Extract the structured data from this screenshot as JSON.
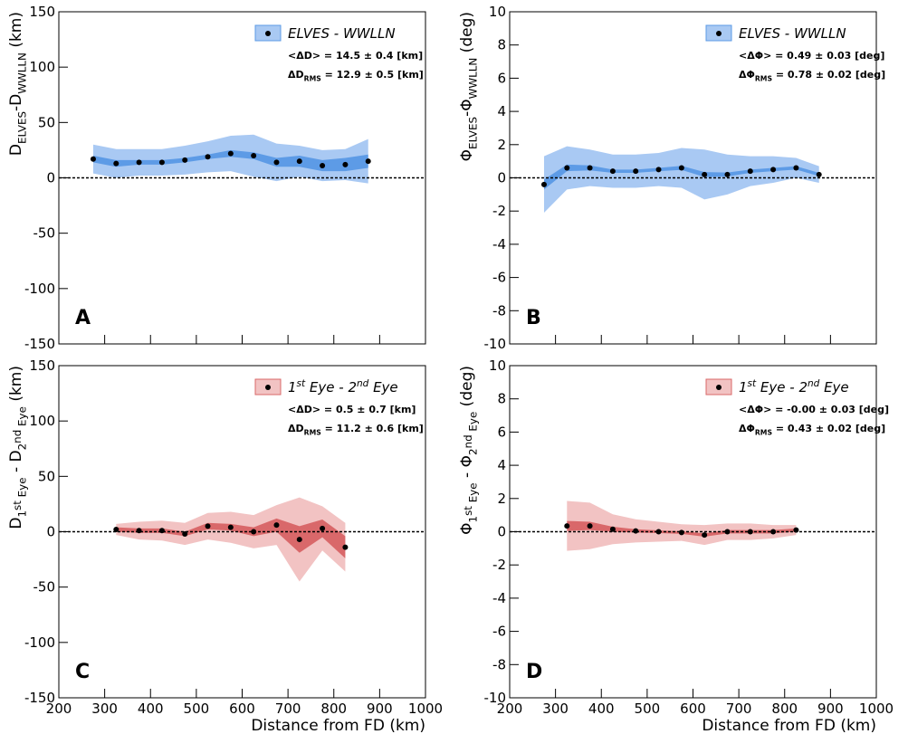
{
  "chart_data": [
    {
      "type": "binned-scatter",
      "panel_label": "A",
      "ylabel": [
        {
          "text": "D"
        },
        {
          "text": "ELVES",
          "pos": "sub"
        },
        {
          "text": "-D"
        },
        {
          "text": "WWLLN",
          "pos": "sub"
        },
        {
          "text": " (km)"
        }
      ],
      "xlim": [
        200,
        1000
      ],
      "xticks": [
        200,
        300,
        400,
        500,
        600,
        700,
        800,
        900,
        1000
      ],
      "show_xtick_labels": false,
      "ylim": [
        -150,
        150
      ],
      "yticks": [
        -150,
        -100,
        -50,
        0,
        50,
        100,
        150
      ],
      "x": [
        275,
        325,
        375,
        425,
        475,
        525,
        575,
        625,
        675,
        725,
        775,
        825,
        875
      ],
      "series": [
        {
          "name": [
            {
              "text": "ELVES - WWLLN"
            }
          ],
          "color": "#000000",
          "band_color": "#a9c9f3",
          "error_color": "#5d9be6",
          "values": [
            17,
            13,
            14,
            14,
            16,
            19,
            22,
            20,
            14,
            15,
            11,
            12,
            15
          ],
          "rms": [
            13,
            13,
            12,
            12,
            13,
            14,
            16,
            19,
            17,
            14,
            14,
            14,
            20
          ],
          "errors": [
            3,
            3,
            2,
            2,
            2,
            2,
            3,
            3,
            4,
            5,
            5,
            6,
            6
          ]
        }
      ],
      "stats": [
        [
          {
            "text": "<ΔD> = 14.5 ± 0.4 [km]"
          }
        ],
        [
          {
            "text": "ΔD"
          },
          {
            "text": "RMS",
            "pos": "sub"
          },
          {
            "text": " = 12.9 ± 0.5 [km]"
          }
        ]
      ]
    },
    {
      "type": "binned-scatter",
      "panel_label": "B",
      "ylabel": [
        {
          "text": "Φ"
        },
        {
          "text": "ELVES",
          "pos": "sub"
        },
        {
          "text": "-Φ"
        },
        {
          "text": "WWLLN",
          "pos": "sub"
        },
        {
          "text": " (deg)"
        }
      ],
      "xlim": [
        200,
        1000
      ],
      "xticks": [
        200,
        300,
        400,
        500,
        600,
        700,
        800,
        900,
        1000
      ],
      "show_xtick_labels": false,
      "ylim": [
        -10,
        10
      ],
      "yticks": [
        -10,
        -8,
        -6,
        -4,
        -2,
        0,
        2,
        4,
        6,
        8,
        10
      ],
      "x": [
        275,
        325,
        375,
        425,
        475,
        525,
        575,
        625,
        675,
        725,
        775,
        825,
        875
      ],
      "series": [
        {
          "name": [
            {
              "text": "ELVES - WWLLN"
            }
          ],
          "color": "#000000",
          "band_color": "#a9c9f3",
          "error_color": "#5d9be6",
          "values": [
            -0.4,
            0.6,
            0.6,
            0.4,
            0.4,
            0.5,
            0.6,
            0.2,
            0.2,
            0.4,
            0.5,
            0.6,
            0.2
          ],
          "rms": [
            1.7,
            1.3,
            1.1,
            1.0,
            1.0,
            1.0,
            1.2,
            1.5,
            1.2,
            0.9,
            0.8,
            0.6,
            0.5
          ],
          "errors": [
            0.3,
            0.2,
            0.15,
            0.1,
            0.1,
            0.1,
            0.12,
            0.15,
            0.12,
            0.1,
            0.1,
            0.1,
            0.1
          ]
        }
      ],
      "stats": [
        [
          {
            "text": "<ΔΦ> = 0.49 ± 0.03 [deg]"
          }
        ],
        [
          {
            "text": "ΔΦ"
          },
          {
            "text": "RMS",
            "pos": "sub"
          },
          {
            "text": " = 0.78 ± 0.02 [deg]"
          }
        ]
      ]
    },
    {
      "type": "binned-scatter",
      "panel_label": "C",
      "xlabel": "Distance from FD (km)",
      "ylabel": [
        {
          "text": "D"
        },
        {
          "text": "1",
          "pos": "sub"
        },
        {
          "text": "st",
          "pos": "subsup"
        },
        {
          "text": " Eye",
          "pos": "sub"
        },
        {
          "text": " - D"
        },
        {
          "text": "2",
          "pos": "sub"
        },
        {
          "text": "nd",
          "pos": "subsup"
        },
        {
          "text": " Eye",
          "pos": "sub"
        },
        {
          "text": " (km)"
        }
      ],
      "xlim": [
        200,
        1000
      ],
      "xticks": [
        200,
        300,
        400,
        500,
        600,
        700,
        800,
        900,
        1000
      ],
      "show_xtick_labels": true,
      "ylim": [
        -150,
        150
      ],
      "yticks": [
        -150,
        -100,
        -50,
        0,
        50,
        100,
        150
      ],
      "x": [
        325,
        375,
        425,
        475,
        525,
        575,
        625,
        675,
        725,
        775,
        825
      ],
      "series": [
        {
          "name": [
            {
              "text": "1"
            },
            {
              "text": "st",
              "pos": "sup"
            },
            {
              "text": " Eye - 2"
            },
            {
              "text": "nd",
              "pos": "sup"
            },
            {
              "text": " Eye"
            }
          ],
          "color": "#000000",
          "band_color": "#f2c3c3",
          "error_color": "#d9686a",
          "values": [
            2,
            1,
            1,
            -2,
            5,
            4,
            0,
            6,
            -7,
            3,
            -14
          ],
          "rms": [
            5,
            8,
            9,
            10,
            12,
            14,
            15,
            18,
            38,
            20,
            22
          ],
          "errors": [
            2,
            2,
            2,
            2,
            3,
            3,
            4,
            6,
            12,
            8,
            10
          ]
        }
      ],
      "stats": [
        [
          {
            "text": "<ΔD> = 0.5 ± 0.7 [km]"
          }
        ],
        [
          {
            "text": "ΔD"
          },
          {
            "text": "RMS",
            "pos": "sub"
          },
          {
            "text": " = 11.2 ± 0.6 [km]"
          }
        ]
      ]
    },
    {
      "type": "binned-scatter",
      "panel_label": "D",
      "xlabel": "Distance from FD (km)",
      "ylabel": [
        {
          "text": "Φ"
        },
        {
          "text": "1",
          "pos": "sub"
        },
        {
          "text": "st",
          "pos": "subsup"
        },
        {
          "text": " Eye",
          "pos": "sub"
        },
        {
          "text": " - Φ"
        },
        {
          "text": "2",
          "pos": "sub"
        },
        {
          "text": "nd",
          "pos": "subsup"
        },
        {
          "text": " Eye",
          "pos": "sub"
        },
        {
          "text": " (deg)"
        }
      ],
      "xlim": [
        200,
        1000
      ],
      "xticks": [
        200,
        300,
        400,
        500,
        600,
        700,
        800,
        900,
        1000
      ],
      "show_xtick_labels": true,
      "ylim": [
        -10,
        10
      ],
      "yticks": [
        -10,
        -8,
        -6,
        -4,
        -2,
        0,
        2,
        4,
        6,
        8,
        10
      ],
      "x": [
        325,
        375,
        425,
        475,
        525,
        575,
        625,
        675,
        725,
        775,
        825
      ],
      "series": [
        {
          "name": [
            {
              "text": "1"
            },
            {
              "text": "st",
              "pos": "sup"
            },
            {
              "text": " Eye - 2"
            },
            {
              "text": "nd",
              "pos": "sup"
            },
            {
              "text": " Eye"
            }
          ],
          "color": "#000000",
          "band_color": "#f2c3c3",
          "error_color": "#d9686a",
          "values": [
            0.35,
            0.35,
            0.15,
            0.05,
            0,
            -0.05,
            -0.2,
            0,
            0,
            0,
            0.1
          ],
          "rms": [
            1.5,
            1.4,
            0.9,
            0.7,
            0.6,
            0.5,
            0.6,
            0.5,
            0.5,
            0.4,
            0.3
          ],
          "errors": [
            0.3,
            0.25,
            0.15,
            0.1,
            0.08,
            0.08,
            0.1,
            0.1,
            0.1,
            0.1,
            0.1
          ]
        }
      ],
      "stats": [
        [
          {
            "text": "<ΔΦ> = -0.00 ± 0.03 [deg]"
          }
        ],
        [
          {
            "text": "ΔΦ"
          },
          {
            "text": "RMS",
            "pos": "sub"
          },
          {
            "text": " = 0.43 ± 0.02 [deg]"
          }
        ]
      ]
    }
  ]
}
